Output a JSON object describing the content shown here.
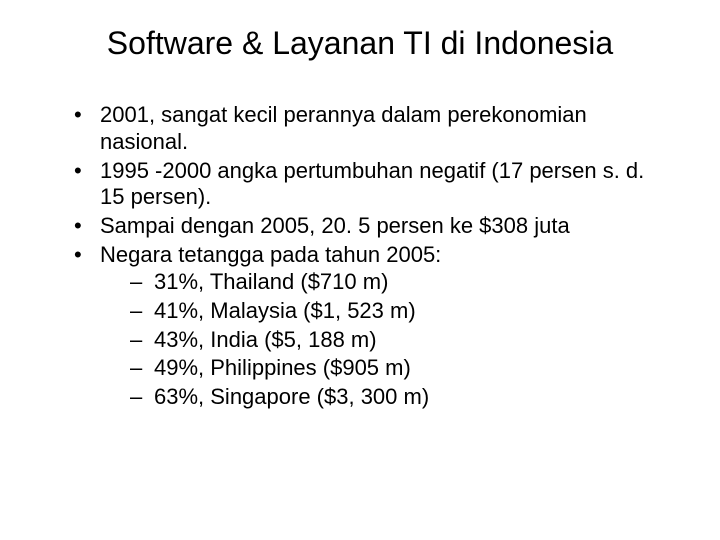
{
  "title": "Software & Layanan TI di Indonesia",
  "bullets": [
    {
      "text": "2001, sangat kecil perannya dalam perekonomian nasional."
    },
    {
      "text": "1995 -2000 angka pertumbuhan negatif (17 persen s. d. 15 persen)."
    },
    {
      "text": "Sampai dengan 2005, 20. 5 persen ke $308 juta"
    },
    {
      "text": "Negara tetangga pada tahun 2005:"
    }
  ],
  "subitems": [
    {
      "text": "31%, Thailand ($710 m)"
    },
    {
      "text": "41%, Malaysia ($1, 523 m)"
    },
    {
      "text": "43%, India ($5, 188 m)"
    },
    {
      "text": "49%, Philippines ($905 m)"
    },
    {
      "text": "63%, Singapore ($3, 300 m)"
    }
  ],
  "style": {
    "background_color": "#ffffff",
    "text_color": "#000000",
    "title_fontsize": 32,
    "body_fontsize": 22,
    "font_family": "Arial, Helvetica, sans-serif",
    "bullet_char": "•",
    "sub_bullet_char": "–"
  }
}
